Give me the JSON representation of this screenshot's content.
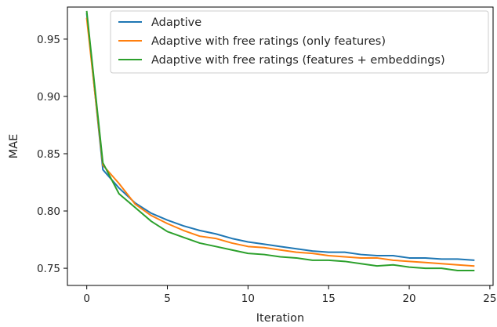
{
  "chart_data": {
    "type": "line",
    "title": "",
    "xlabel": "Iteration",
    "ylabel": "MAE",
    "xlim": [
      -1.2,
      25.2
    ],
    "ylim": [
      0.735,
      0.978
    ],
    "xticks": [
      0,
      5,
      10,
      15,
      20,
      25
    ],
    "yticks": [
      0.75,
      0.8,
      0.85,
      0.9,
      0.95
    ],
    "ytick_labels": [
      "0.75",
      "0.80",
      "0.85",
      "0.90",
      "0.95"
    ],
    "grid": false,
    "legend_position": "top-right",
    "x": [
      0,
      1,
      2,
      3,
      4,
      5,
      6,
      7,
      8,
      9,
      10,
      11,
      12,
      13,
      14,
      15,
      16,
      17,
      18,
      19,
      20,
      21,
      22,
      23,
      24
    ],
    "series": [
      {
        "name": "Adaptive",
        "color": "#1f77b4",
        "values": [
          0.972,
          0.836,
          0.82,
          0.807,
          0.798,
          0.792,
          0.787,
          0.783,
          0.78,
          0.776,
          0.773,
          0.771,
          0.769,
          0.767,
          0.765,
          0.764,
          0.764,
          0.762,
          0.761,
          0.761,
          0.759,
          0.759,
          0.758,
          0.758,
          0.757
        ]
      },
      {
        "name": "Adaptive with free ratings (only features)",
        "color": "#ff7f0e",
        "values": [
          0.968,
          0.84,
          0.824,
          0.806,
          0.796,
          0.789,
          0.783,
          0.778,
          0.776,
          0.772,
          0.769,
          0.768,
          0.766,
          0.764,
          0.763,
          0.761,
          0.76,
          0.759,
          0.759,
          0.757,
          0.756,
          0.755,
          0.754,
          0.753,
          0.752
        ]
      },
      {
        "name": "Adaptive with free ratings (features + embeddings)",
        "color": "#2ca02c",
        "values": [
          0.974,
          0.842,
          0.815,
          0.803,
          0.791,
          0.782,
          0.777,
          0.772,
          0.769,
          0.766,
          0.763,
          0.762,
          0.76,
          0.759,
          0.757,
          0.757,
          0.756,
          0.754,
          0.752,
          0.753,
          0.751,
          0.75,
          0.75,
          0.748,
          0.748
        ]
      }
    ]
  }
}
